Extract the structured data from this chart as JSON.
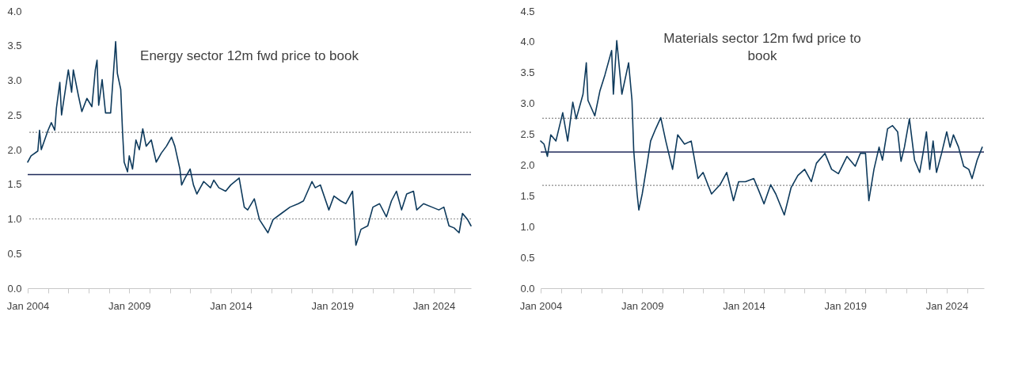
{
  "chart_data": [
    {
      "type": "line",
      "title": "Energy sector 12m fwd price to book",
      "grid": false,
      "marker": "none",
      "line_style": "solid",
      "x": [
        "2004-01",
        "2004-03",
        "2004-07",
        "2004-08",
        "2004-09",
        "2005-01",
        "2005-03",
        "2005-05",
        "2005-06",
        "2005-08",
        "2005-09",
        "2006-01",
        "2006-03",
        "2006-04",
        "2006-07",
        "2006-09",
        "2006-12",
        "2007-03",
        "2007-05",
        "2007-06",
        "2007-07",
        "2007-09",
        "2007-11",
        "2008-02",
        "2008-05",
        "2008-06",
        "2008-08",
        "2008-09",
        "2008-10",
        "2008-12",
        "2009-01",
        "2009-03",
        "2009-05",
        "2009-07",
        "2009-09",
        "2009-11",
        "2010-02",
        "2010-05",
        "2010-08",
        "2010-11",
        "2011-02",
        "2011-04",
        "2011-07",
        "2011-08",
        "2011-10",
        "2012-01",
        "2012-03",
        "2012-05",
        "2012-09",
        "2013-01",
        "2013-03",
        "2013-06",
        "2013-10",
        "2014-01",
        "2014-06",
        "2014-09",
        "2014-11",
        "2015-03",
        "2015-06",
        "2015-11",
        "2016-02",
        "2016-07",
        "2016-12",
        "2017-05",
        "2017-08",
        "2018-01",
        "2018-03",
        "2018-06",
        "2018-11",
        "2019-02",
        "2019-06",
        "2019-09",
        "2020-01",
        "2020-03",
        "2020-06",
        "2020-10",
        "2021-01",
        "2021-05",
        "2021-09",
        "2021-12",
        "2022-03",
        "2022-06",
        "2022-09",
        "2023-01",
        "2023-03",
        "2023-07",
        "2023-12",
        "2024-04",
        "2024-07",
        "2024-10",
        "2025-01",
        "2025-04",
        "2025-06",
        "2025-09",
        "2025-11"
      ],
      "series": [
        {
          "color": "#0e3a5c",
          "values": [
            1.82,
            1.91,
            1.98,
            2.28,
            2.0,
            2.28,
            2.39,
            2.28,
            2.6,
            2.97,
            2.5,
            3.15,
            2.83,
            3.15,
            2.78,
            2.55,
            2.74,
            2.62,
            3.15,
            3.29,
            2.64,
            3.01,
            2.53,
            2.53,
            3.56,
            3.1,
            2.87,
            2.28,
            1.82,
            1.68,
            1.91,
            1.72,
            2.14,
            2.0,
            2.3,
            2.05,
            2.14,
            1.82,
            1.95,
            2.05,
            2.18,
            2.05,
            1.72,
            1.49,
            1.59,
            1.72,
            1.49,
            1.36,
            1.54,
            1.45,
            1.56,
            1.45,
            1.4,
            1.49,
            1.59,
            1.17,
            1.13,
            1.29,
            0.99,
            0.8,
            0.99,
            1.08,
            1.17,
            1.22,
            1.26,
            1.54,
            1.45,
            1.49,
            1.13,
            1.33,
            1.26,
            1.22,
            1.4,
            0.62,
            0.85,
            0.9,
            1.17,
            1.22,
            1.03,
            1.26,
            1.4,
            1.13,
            1.36,
            1.4,
            1.13,
            1.22,
            1.17,
            1.13,
            1.17,
            0.9,
            0.87,
            0.8,
            1.08,
            0.99,
            0.9
          ]
        }
      ],
      "xlim": [
        "2004-01",
        "2025-11"
      ],
      "xticks": [
        {
          "value": "2004-01",
          "label": "Jan 2004"
        },
        {
          "value": "2005-01",
          "label": null
        },
        {
          "value": "2006-01",
          "label": null
        },
        {
          "value": "2007-01",
          "label": null
        },
        {
          "value": "2008-01",
          "label": null
        },
        {
          "value": "2009-01",
          "label": "Jan 2009"
        },
        {
          "value": "2010-01",
          "label": null
        },
        {
          "value": "2011-01",
          "label": null
        },
        {
          "value": "2012-01",
          "label": null
        },
        {
          "value": "2013-01",
          "label": null
        },
        {
          "value": "2014-01",
          "label": "Jan 2014"
        },
        {
          "value": "2015-01",
          "label": null
        },
        {
          "value": "2016-01",
          "label": null
        },
        {
          "value": "2017-01",
          "label": null
        },
        {
          "value": "2018-01",
          "label": null
        },
        {
          "value": "2019-01",
          "label": "Jan 2019"
        },
        {
          "value": "2020-01",
          "label": null
        },
        {
          "value": "2021-01",
          "label": null
        },
        {
          "value": "2022-01",
          "label": null
        },
        {
          "value": "2023-01",
          "label": null
        },
        {
          "value": "2024-01",
          "label": "Jan 2024"
        },
        {
          "value": "2025-01",
          "label": null
        }
      ],
      "ylim": [
        0,
        4
      ],
      "yticks": [
        {
          "value": 0,
          "label": "0.0"
        },
        {
          "value": 0.5,
          "label": "0.5"
        },
        {
          "value": 1,
          "label": "1.0"
        },
        {
          "value": 1.5,
          "label": "1.5"
        },
        {
          "value": 2,
          "label": "2.0"
        },
        {
          "value": 2.5,
          "label": "2.5"
        },
        {
          "value": 3,
          "label": "3.0"
        },
        {
          "value": 3.5,
          "label": "3.5"
        },
        {
          "value": 4,
          "label": "4.0"
        }
      ],
      "ref_lines": [
        {
          "axis": "y",
          "value": 1.64,
          "color": "#1f2a5a",
          "line_style": "solid"
        },
        {
          "axis": "y",
          "value": 2.25,
          "color": "#8c8c8c",
          "line_style": "dotted"
        },
        {
          "axis": "y",
          "value": 1.0,
          "color": "#8c8c8c",
          "line_style": "dotted"
        }
      ]
    },
    {
      "type": "line",
      "title": "Materials  sector 12m fwd price to book",
      "grid": false,
      "marker": "none",
      "line_style": "solid",
      "x": [
        "2004-01",
        "2004-03",
        "2004-05",
        "2004-07",
        "2004-10",
        "2005-02",
        "2005-05",
        "2005-08",
        "2005-10",
        "2006-02",
        "2006-04",
        "2006-05",
        "2006-09",
        "2006-12",
        "2007-03",
        "2007-07",
        "2007-08",
        "2007-10",
        "2008-01",
        "2008-05",
        "2008-07",
        "2008-08",
        "2008-10",
        "2008-11",
        "2009-01",
        "2009-04",
        "2009-06",
        "2009-09",
        "2009-12",
        "2010-03",
        "2010-07",
        "2010-10",
        "2011-02",
        "2011-06",
        "2011-10",
        "2012-01",
        "2012-06",
        "2012-11",
        "2013-03",
        "2013-07",
        "2013-10",
        "2014-02",
        "2014-07",
        "2014-10",
        "2015-01",
        "2015-05",
        "2015-08",
        "2016-01",
        "2016-05",
        "2016-09",
        "2017-01",
        "2017-05",
        "2017-08",
        "2018-01",
        "2018-05",
        "2018-09",
        "2019-02",
        "2019-07",
        "2019-10",
        "2020-01",
        "2020-03",
        "2020-06",
        "2020-09",
        "2020-11",
        "2021-02",
        "2021-05",
        "2021-08",
        "2021-10",
        "2021-12",
        "2022-03",
        "2022-06",
        "2022-09",
        "2022-11",
        "2023-01",
        "2023-03",
        "2023-05",
        "2023-07",
        "2023-10",
        "2024-01",
        "2024-03",
        "2024-05",
        "2024-08",
        "2024-11",
        "2025-02",
        "2025-04",
        "2025-07",
        "2025-10"
      ],
      "series": [
        {
          "color": "#0e3a5c",
          "values": [
            2.39,
            2.34,
            2.14,
            2.49,
            2.39,
            2.85,
            2.39,
            3.02,
            2.75,
            3.15,
            3.66,
            3.05,
            2.8,
            3.2,
            3.46,
            3.86,
            3.15,
            4.02,
            3.15,
            3.66,
            3.05,
            2.24,
            1.53,
            1.27,
            1.53,
            2.03,
            2.39,
            2.59,
            2.77,
            2.39,
            1.93,
            2.49,
            2.34,
            2.39,
            1.78,
            1.88,
            1.53,
            1.68,
            1.88,
            1.42,
            1.73,
            1.73,
            1.78,
            1.58,
            1.37,
            1.68,
            1.53,
            1.19,
            1.63,
            1.83,
            1.93,
            1.73,
            2.03,
            2.19,
            1.93,
            1.86,
            2.14,
            1.98,
            2.19,
            2.19,
            1.42,
            1.93,
            2.29,
            2.08,
            2.59,
            2.64,
            2.54,
            2.06,
            2.29,
            2.75,
            2.08,
            1.88,
            2.19,
            2.54,
            1.93,
            2.39,
            1.88,
            2.19,
            2.54,
            2.29,
            2.49,
            2.29,
            1.98,
            1.93,
            1.78,
            2.08,
            2.29
          ]
        }
      ],
      "xlim": [
        "2004-01",
        "2025-11"
      ],
      "xticks": [
        {
          "value": "2004-01",
          "label": "Jan 2004"
        },
        {
          "value": "2005-01",
          "label": null
        },
        {
          "value": "2006-01",
          "label": null
        },
        {
          "value": "2007-01",
          "label": null
        },
        {
          "value": "2008-01",
          "label": null
        },
        {
          "value": "2009-01",
          "label": "Jan 2009"
        },
        {
          "value": "2010-01",
          "label": null
        },
        {
          "value": "2011-01",
          "label": null
        },
        {
          "value": "2012-01",
          "label": null
        },
        {
          "value": "2013-01",
          "label": null
        },
        {
          "value": "2014-01",
          "label": "Jan 2014"
        },
        {
          "value": "2015-01",
          "label": null
        },
        {
          "value": "2016-01",
          "label": null
        },
        {
          "value": "2017-01",
          "label": null
        },
        {
          "value": "2018-01",
          "label": null
        },
        {
          "value": "2019-01",
          "label": "Jan 2019"
        },
        {
          "value": "2020-01",
          "label": null
        },
        {
          "value": "2021-01",
          "label": null
        },
        {
          "value": "2022-01",
          "label": null
        },
        {
          "value": "2023-01",
          "label": null
        },
        {
          "value": "2024-01",
          "label": "Jan 2024"
        },
        {
          "value": "2025-01",
          "label": null
        }
      ],
      "ylim": [
        0,
        4.5
      ],
      "yticks": [
        {
          "value": 0,
          "label": "0.0"
        },
        {
          "value": 0.5,
          "label": "0.5"
        },
        {
          "value": 1,
          "label": "1.0"
        },
        {
          "value": 1.5,
          "label": "1.5"
        },
        {
          "value": 2,
          "label": "2.0"
        },
        {
          "value": 2.5,
          "label": "2.5"
        },
        {
          "value": 3,
          "label": "3.0"
        },
        {
          "value": 3.5,
          "label": "3.5"
        },
        {
          "value": 4,
          "label": "4.0"
        },
        {
          "value": 4.5,
          "label": "4.5"
        }
      ],
      "ref_lines": [
        {
          "axis": "y",
          "value": 2.21,
          "color": "#1f2a5a",
          "line_style": "solid"
        },
        {
          "axis": "y",
          "value": 2.76,
          "color": "#8c8c8c",
          "line_style": "dotted"
        },
        {
          "axis": "y",
          "value": 1.67,
          "color": "#8c8c8c",
          "line_style": "dotted"
        }
      ]
    }
  ]
}
